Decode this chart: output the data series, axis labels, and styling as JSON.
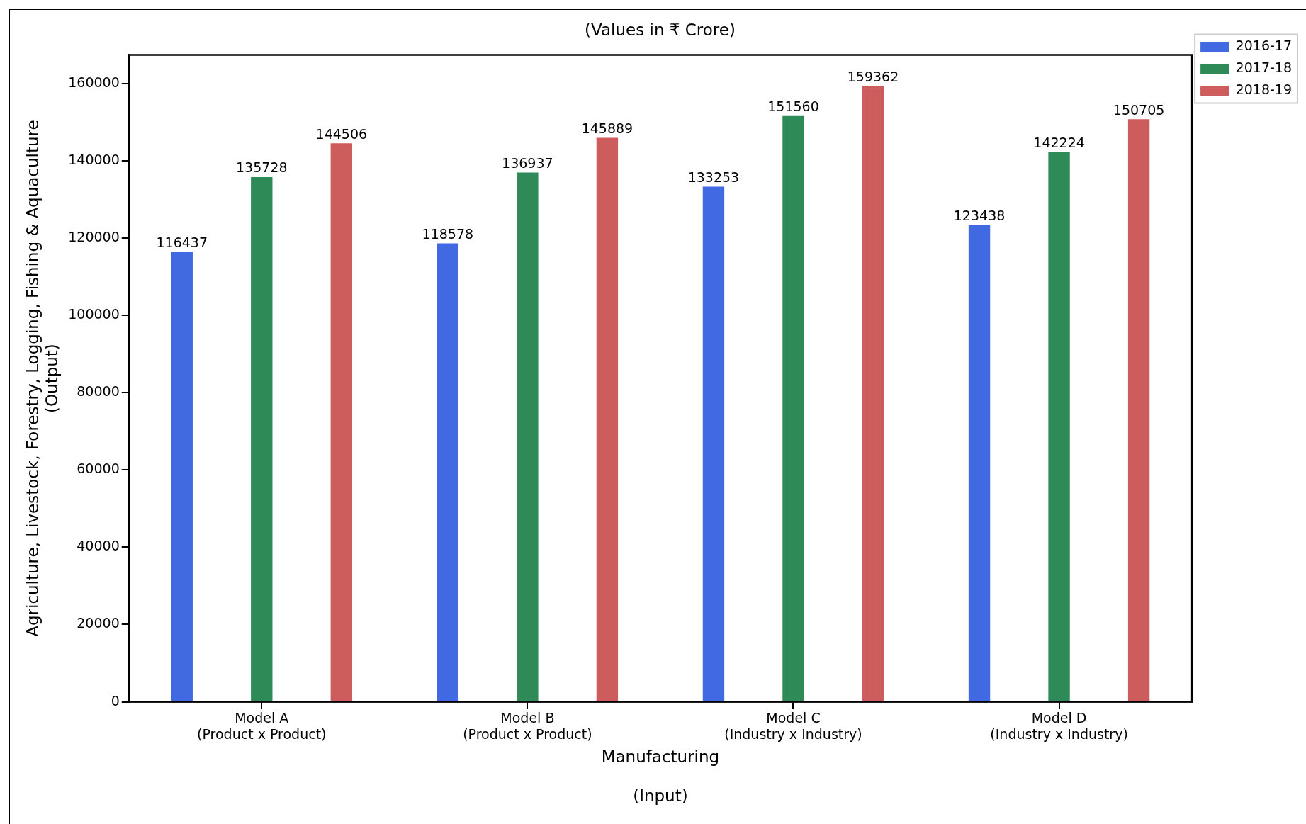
{
  "chart_data": {
    "type": "bar",
    "title": "(Values in ₹ Crore)",
    "xlabel": "Manufacturing\n\n(Input)",
    "ylabel": "Agriculture, Livestock, Forestry, Logging, Fishing & Aquaculture\n(Output)",
    "categories": [
      "Model A\n(Product x Product)",
      "Model B\n(Product x Product)",
      "Model C\n(Industry x Industry)",
      "Model D\n(Industry x Industry)"
    ],
    "series": [
      {
        "name": "2016-17",
        "color": "#4169e1",
        "values": [
          116437,
          118578,
          133253,
          123438
        ]
      },
      {
        "name": "2017-18",
        "color": "#2e8b57",
        "values": [
          135728,
          136937,
          151560,
          142224
        ]
      },
      {
        "name": "2018-19",
        "color": "#cd5c5c",
        "values": [
          144506,
          145889,
          159362,
          150705
        ]
      }
    ],
    "ylim": [
      0,
      167330
    ],
    "yticks": [
      0,
      20000,
      40000,
      60000,
      80000,
      100000,
      120000,
      140000,
      160000
    ],
    "grid": false,
    "legend": "top right",
    "data_labels": true
  }
}
